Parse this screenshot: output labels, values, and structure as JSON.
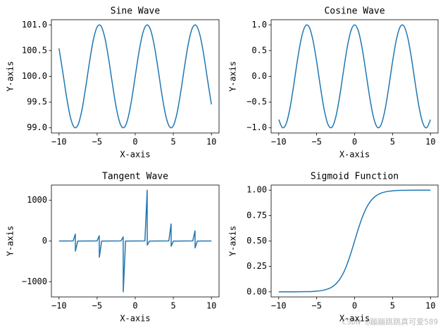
{
  "chart_data": [
    {
      "type": "line",
      "title": "Sine Wave",
      "xlabel": "X-axis",
      "ylabel": "Y-axis",
      "x": [
        -10,
        -9.5,
        -9,
        -8.5,
        -8,
        -7.5,
        -7,
        -6.5,
        -6,
        -5.5,
        -5,
        -4.5,
        -4,
        -3.5,
        -3,
        -2.5,
        -2,
        -1.5,
        -1,
        -0.5,
        0,
        0.5,
        1,
        1.5,
        2,
        2.5,
        3,
        3.5,
        4,
        4.5,
        5,
        5.5,
        6,
        6.5,
        7,
        7.5,
        8,
        8.5,
        9,
        9.5,
        10
      ],
      "series": [
        {
          "name": "sin",
          "color": "#1f77b4",
          "values": [
            100.544,
            100.075,
            99.588,
            99.202,
            99.011,
            99.062,
            99.343,
            99.785,
            100.279,
            100.706,
            100.959,
            100.978,
            100.757,
            100.351,
            99.859,
            99.402,
            99.091,
            99.003,
            99.159,
            99.521,
            100,
            100.479,
            100.841,
            100.997,
            100.909,
            100.598,
            100.141,
            99.649,
            99.243,
            99.022,
            99.041,
            99.294,
            99.721,
            100.215,
            100.657,
            100.938,
            100.989,
            100.798,
            100.412,
            99.925,
            99.456
          ]
        }
      ],
      "xlim": [
        -11,
        11
      ],
      "xticks": [
        {
          "value": -10,
          "label": "−10"
        },
        {
          "value": -5,
          "label": "−5"
        },
        0,
        5,
        10
      ],
      "ylim": [
        98.9,
        101.1
      ],
      "yticks": [
        {
          "value": 99,
          "label": "99.0"
        },
        {
          "value": 99.5,
          "label": "99.5"
        },
        {
          "value": 100,
          "label": "100.0"
        },
        {
          "value": 100.5,
          "label": "100.5"
        },
        {
          "value": 101,
          "label": "101.0"
        }
      ]
    },
    {
      "type": "line",
      "title": "Cosine Wave",
      "xlabel": "X-axis",
      "ylabel": "Y-axis",
      "x": [
        -10,
        -9.5,
        -9,
        -8.5,
        -8,
        -7.5,
        -7,
        -6.5,
        -6,
        -5.5,
        -5,
        -4.5,
        -4,
        -3.5,
        -3,
        -2.5,
        -2,
        -1.5,
        -1,
        -0.5,
        0,
        0.5,
        1,
        1.5,
        2,
        2.5,
        3,
        3.5,
        4,
        4.5,
        5,
        5.5,
        6,
        6.5,
        7,
        7.5,
        8,
        8.5,
        9,
        9.5,
        10
      ],
      "series": [
        {
          "name": "cos",
          "color": "#1f77b4",
          "values": [
            -0.839,
            -0.997,
            -0.911,
            -0.602,
            -0.146,
            0.347,
            0.754,
            0.977,
            0.96,
            0.709,
            0.284,
            -0.211,
            -0.654,
            -0.936,
            -0.99,
            -0.801,
            -0.416,
            0.071,
            0.54,
            0.878,
            1,
            0.878,
            0.54,
            0.071,
            -0.416,
            -0.801,
            -0.99,
            -0.936,
            -0.654,
            -0.211,
            0.284,
            0.709,
            0.96,
            0.977,
            0.754,
            0.347,
            -0.146,
            -0.602,
            -0.911,
            -0.997,
            -0.839
          ]
        }
      ],
      "xlim": [
        -11,
        11
      ],
      "xticks": [
        {
          "value": -10,
          "label": "−10"
        },
        {
          "value": -5,
          "label": "−5"
        },
        0,
        5,
        10
      ],
      "ylim": [
        -1.1,
        1.1
      ],
      "yticks": [
        {
          "value": -1,
          "label": "−1.0"
        },
        {
          "value": -0.5,
          "label": "−0.5"
        },
        {
          "value": 0,
          "label": "0.0"
        },
        {
          "value": 0.5,
          "label": "0.5"
        },
        {
          "value": 1,
          "label": "1.0"
        }
      ]
    },
    {
      "type": "line",
      "title": "Tangent Wave",
      "xlabel": "X-axis",
      "ylabel": "Y-axis",
      "x": [
        -10,
        -9,
        -8.15,
        -7.86,
        -7.85,
        -7.55,
        -6.28,
        -5.01,
        -4.72,
        -4.71,
        -4.41,
        -3.14,
        -1.87,
        -1.58,
        -1.57,
        -1.27,
        0,
        1.27,
        1.57,
        1.58,
        1.87,
        3.14,
        4.41,
        4.71,
        4.72,
        5.01,
        6.28,
        7.55,
        7.85,
        7.86,
        8.15,
        9,
        10
      ],
      "series": [
        {
          "name": "tan",
          "color": "#1f77b4",
          "values": [
            -0.65,
            0.45,
            3.2,
            170,
            -250,
            -3.2,
            0,
            3.2,
            130,
            -400,
            -3.2,
            0,
            3.2,
            100,
            -1250,
            -3.2,
            0,
            3.2,
            1250,
            -100,
            -3.2,
            0,
            3.2,
            420,
            -130,
            -3.2,
            0,
            3.2,
            250,
            -170,
            -3.2,
            -0.45,
            0.65
          ]
        }
      ],
      "xlim": [
        -11,
        11
      ],
      "xticks": [
        {
          "value": -10,
          "label": "−10"
        },
        {
          "value": -5,
          "label": "−5"
        },
        0,
        5,
        10
      ],
      "ylim": [
        -1375,
        1375
      ],
      "yticks": [
        {
          "value": -1000,
          "label": "−1000"
        },
        0,
        1000
      ]
    },
    {
      "type": "line",
      "title": "Sigmoid Function",
      "xlabel": "X-axis",
      "ylabel": "Y-axis",
      "x": [
        -10,
        -9.5,
        -9,
        -8.5,
        -8,
        -7.5,
        -7,
        -6.5,
        -6,
        -5.5,
        -5,
        -4.5,
        -4,
        -3.5,
        -3,
        -2.5,
        -2,
        -1.5,
        -1,
        -0.5,
        0,
        0.5,
        1,
        1.5,
        2,
        2.5,
        3,
        3.5,
        4,
        4.5,
        5,
        5.5,
        6,
        6.5,
        7,
        7.5,
        8,
        8.5,
        9,
        9.5,
        10
      ],
      "series": [
        {
          "name": "sigmoid",
          "color": "#1f77b4",
          "values": [
            0,
            0,
            0,
            0,
            0,
            0.001,
            0.001,
            0.002,
            0.002,
            0.004,
            0.007,
            0.011,
            0.018,
            0.029,
            0.047,
            0.076,
            0.119,
            0.182,
            0.269,
            0.378,
            0.5,
            0.622,
            0.731,
            0.818,
            0.881,
            0.924,
            0.953,
            0.971,
            0.982,
            0.989,
            0.993,
            0.996,
            0.998,
            0.998,
            0.999,
            0.999,
            1,
            1,
            1,
            1,
            1
          ]
        }
      ],
      "xlim": [
        -11,
        11
      ],
      "xticks": [
        {
          "value": -10,
          "label": "−10"
        },
        {
          "value": -5,
          "label": "−5"
        },
        0,
        5,
        10
      ],
      "ylim": [
        -0.05,
        1.05
      ],
      "yticks": [
        {
          "value": 0,
          "label": "0.00"
        },
        {
          "value": 0.25,
          "label": "0.25"
        },
        {
          "value": 0.5,
          "label": "0.50"
        },
        {
          "value": 0.75,
          "label": "0.75"
        },
        {
          "value": 1,
          "label": "1.00"
        }
      ]
    }
  ],
  "watermark": "CSDN @蹦蹦跳跳真可爱589"
}
